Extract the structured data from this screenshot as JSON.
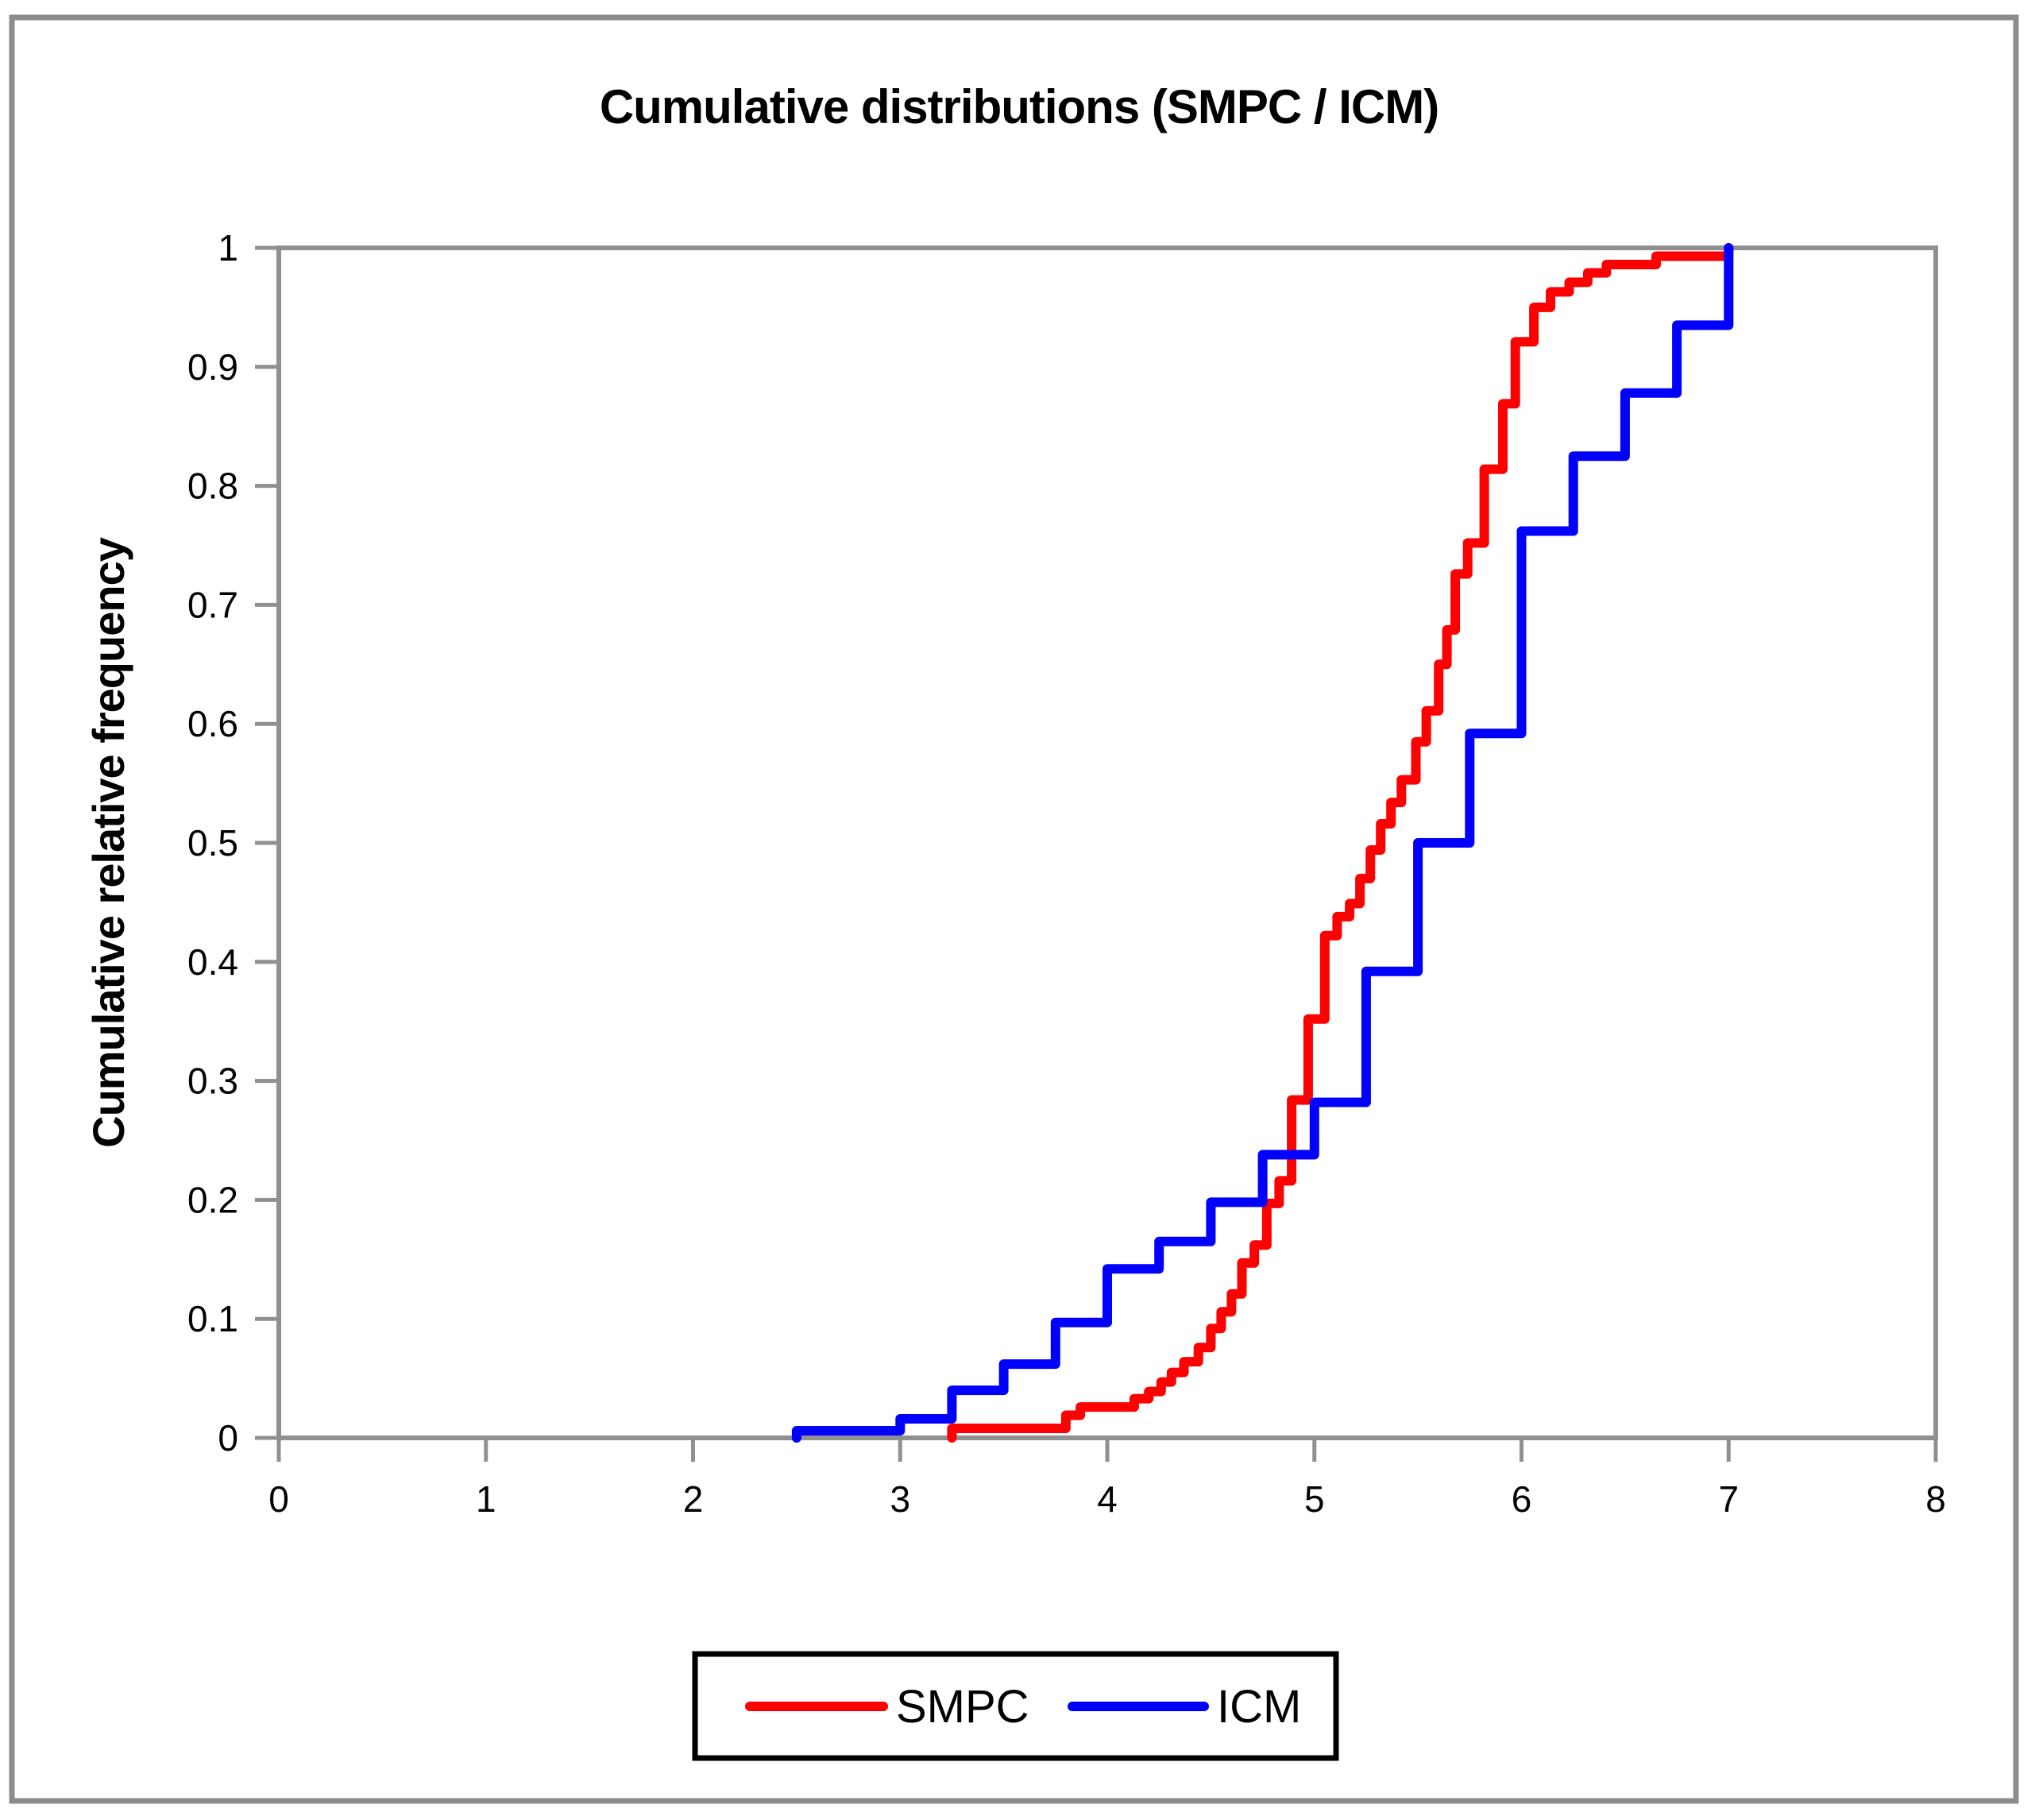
{
  "title": "Cumulative distributions (SMPC / ICM)",
  "y_axis_title": "Cumulative relative frequency",
  "colors": {
    "smpc": "#FF0000",
    "icm": "#0000FF",
    "axis": "#909090",
    "outer_border": "#8C8C8C",
    "legend_border": "#000000",
    "text": "#000000",
    "background": "#FFFFFF"
  },
  "legend": {
    "items": [
      {
        "label": "SMPC",
        "color": "#FF0000"
      },
      {
        "label": "ICM",
        "color": "#0000FF"
      }
    ]
  },
  "chart_data": {
    "type": "line",
    "subtype": "step-after-ecdf",
    "title": "Cumulative distributions (SMPC / ICM)",
    "xlabel": "",
    "ylabel": "Cumulative relative frequency",
    "xlim": [
      0,
      8
    ],
    "ylim": [
      0,
      1
    ],
    "x_ticks": [
      0,
      1,
      2,
      3,
      4,
      5,
      6,
      7,
      8
    ],
    "x_tick_labels": [
      "0",
      "1",
      "2",
      "3",
      "4",
      "5",
      "6",
      "7",
      "8"
    ],
    "y_ticks": [
      0,
      0.1,
      0.2,
      0.3,
      0.4,
      0.5,
      0.6,
      0.7,
      0.8,
      0.9,
      1
    ],
    "y_tick_labels": [
      "0",
      "0.1",
      "0.2",
      "0.3",
      "0.4",
      "0.5",
      "0.6",
      "0.7",
      "0.8",
      "0.9",
      "1"
    ],
    "grid": false,
    "legend_position": "bottom",
    "series": [
      {
        "name": "SMPC",
        "color": "#FF0000",
        "start": [
          3.25,
          0
        ],
        "points": [
          [
            3.25,
            0.008
          ],
          [
            3.8,
            0.019
          ],
          [
            3.87,
            0.026
          ],
          [
            4.13,
            0.033
          ],
          [
            4.2,
            0.039
          ],
          [
            4.26,
            0.047
          ],
          [
            4.31,
            0.055
          ],
          [
            4.37,
            0.064
          ],
          [
            4.44,
            0.076
          ],
          [
            4.5,
            0.092
          ],
          [
            4.55,
            0.106
          ],
          [
            4.6,
            0.121
          ],
          [
            4.65,
            0.147
          ],
          [
            4.71,
            0.162
          ],
          [
            4.77,
            0.197
          ],
          [
            4.83,
            0.216
          ],
          [
            4.89,
            0.284
          ],
          [
            4.97,
            0.352
          ],
          [
            5.05,
            0.422
          ],
          [
            5.11,
            0.438
          ],
          [
            5.17,
            0.449
          ],
          [
            5.22,
            0.47
          ],
          [
            5.27,
            0.494
          ],
          [
            5.32,
            0.516
          ],
          [
            5.37,
            0.534
          ],
          [
            5.42,
            0.553
          ],
          [
            5.49,
            0.585
          ],
          [
            5.54,
            0.611
          ],
          [
            5.6,
            0.65
          ],
          [
            5.64,
            0.679
          ],
          [
            5.68,
            0.726
          ],
          [
            5.74,
            0.752
          ],
          [
            5.82,
            0.814
          ],
          [
            5.91,
            0.869
          ],
          [
            5.97,
            0.921
          ],
          [
            6.06,
            0.95
          ],
          [
            6.14,
            0.963
          ],
          [
            6.23,
            0.971
          ],
          [
            6.32,
            0.979
          ],
          [
            6.41,
            0.986
          ],
          [
            6.65,
            0.993
          ],
          [
            7.0,
            1.0
          ]
        ]
      },
      {
        "name": "ICM",
        "color": "#0000FF",
        "start": [
          2.5,
          0
        ],
        "points": [
          [
            2.5,
            0.006
          ],
          [
            3.0,
            0.016
          ],
          [
            3.25,
            0.04
          ],
          [
            3.5,
            0.062
          ],
          [
            3.75,
            0.097
          ],
          [
            4.0,
            0.142
          ],
          [
            4.25,
            0.165
          ],
          [
            4.5,
            0.198
          ],
          [
            4.75,
            0.238
          ],
          [
            5.0,
            0.282
          ],
          [
            5.25,
            0.392
          ],
          [
            5.5,
            0.5
          ],
          [
            5.75,
            0.592
          ],
          [
            6.0,
            0.762
          ],
          [
            6.25,
            0.825
          ],
          [
            6.5,
            0.878
          ],
          [
            6.75,
            0.935
          ],
          [
            7.0,
            1.0
          ]
        ]
      }
    ]
  }
}
